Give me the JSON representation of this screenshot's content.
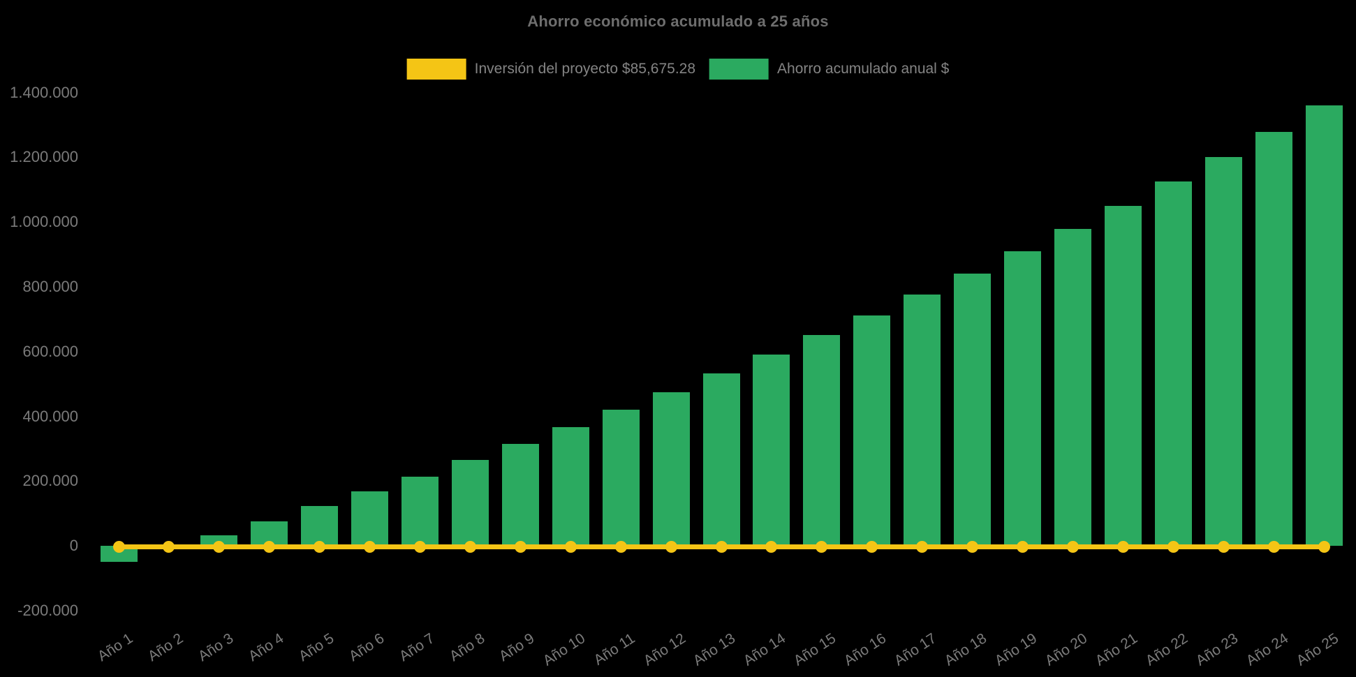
{
  "chart": {
    "background": "#000000",
    "title_color": "#6e6e6e",
    "axis_label_color": "#7b7b7b",
    "legend_text_color": "#848484",
    "legend": [
      {
        "id": "investment",
        "label": "Inversión del proyecto $85,675.28",
        "color": "#F4C515"
      },
      {
        "id": "savings",
        "label": "Ahorro acumulado anual $",
        "color": "#2BAA60"
      }
    ]
  },
  "chart_data": {
    "type": "bar",
    "title": "Ahorro económico acumulado a 25 años",
    "categories": [
      "Año 1",
      "Año 2",
      "Año 3",
      "Año 4",
      "Año 5",
      "Año 6",
      "Año 7",
      "Año 8",
      "Año 9",
      "Año 10",
      "Año 11",
      "Año 12",
      "Año 13",
      "Año 14",
      "Año 15",
      "Año 16",
      "Año 17",
      "Año 18",
      "Año 19",
      "Año 20",
      "Año 21",
      "Año 22",
      "Año 23",
      "Año 24",
      "Año 25"
    ],
    "series": [
      {
        "name": "Ahorro acumulado anual $",
        "type": "bar",
        "color": "#2BAA60",
        "values": [
          -50000,
          0,
          33000,
          76000,
          123000,
          168000,
          214000,
          265000,
          315000,
          366000,
          420000,
          474000,
          532000,
          590000,
          652000,
          711000,
          776000,
          840000,
          910000,
          978000,
          1050000,
          1125000,
          1200000,
          1278000,
          1360000
        ]
      },
      {
        "name": "Inversión del proyecto $85,675.28",
        "type": "line",
        "color": "#F4C515",
        "marker": "circle",
        "values": [
          0,
          0,
          0,
          0,
          0,
          0,
          0,
          0,
          0,
          0,
          0,
          0,
          0,
          0,
          0,
          0,
          0,
          0,
          0,
          0,
          0,
          0,
          0,
          0,
          0
        ]
      }
    ],
    "ylim": [
      -200000,
      1400000
    ],
    "yticks": [
      {
        "value": 1400000,
        "label": "1.400.000"
      },
      {
        "value": 1200000,
        "label": "1.200.000"
      },
      {
        "value": 1000000,
        "label": "1.000.000"
      },
      {
        "value": 800000,
        "label": "800.000"
      },
      {
        "value": 600000,
        "label": "600.000"
      },
      {
        "value": 400000,
        "label": "400.000"
      },
      {
        "value": 200000,
        "label": "200.000"
      },
      {
        "value": 0,
        "label": "0"
      },
      {
        "value": -200000,
        "label": "-200.000"
      }
    ],
    "xlabel": "",
    "ylabel": "",
    "grid": false,
    "legend_position": "top-center",
    "x_label_rotation_deg": -33
  }
}
